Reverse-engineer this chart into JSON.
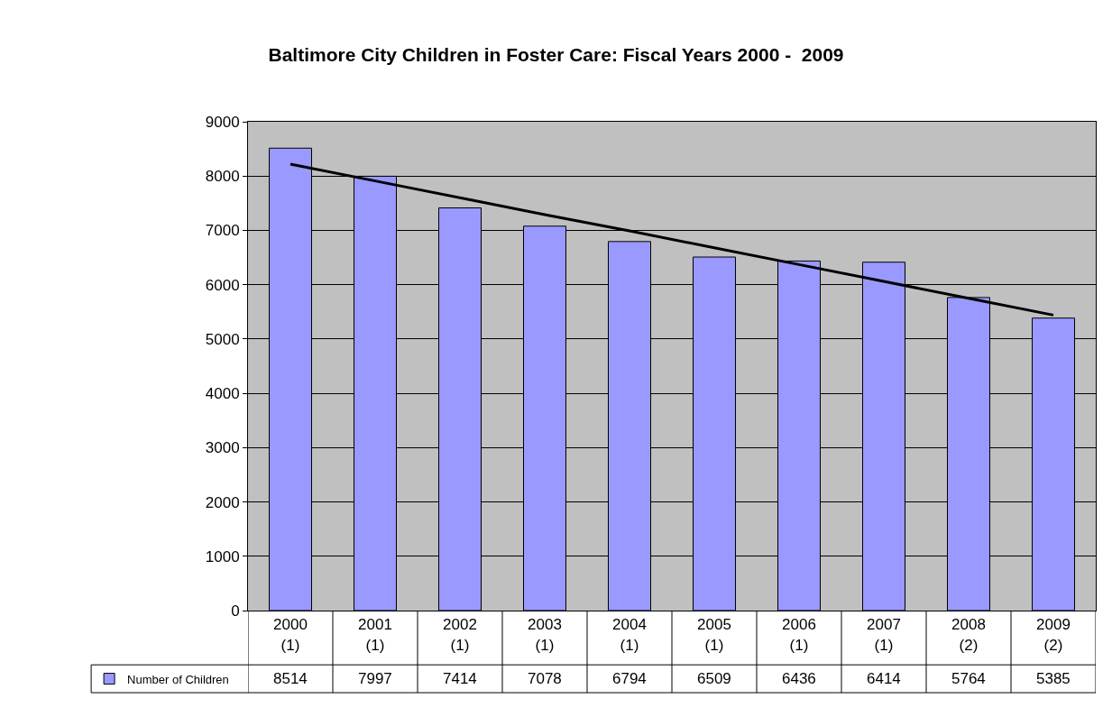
{
  "chart_data": {
    "type": "bar",
    "title": "Baltimore City Children in Foster Care: Fiscal Years 2000 -  2009",
    "categories": [
      "2000\n(1)",
      "2001\n(1)",
      "2002\n(1)",
      "2003\n(1)",
      "2004\n(1)",
      "2005\n(1)",
      "2006\n(1)",
      "2007\n(1)",
      "2008\n(2)",
      "2009\n(2)"
    ],
    "series": [
      {
        "name": "Number of Children",
        "color": "#9999ff",
        "values": [
          8514,
          7997,
          7414,
          7078,
          6794,
          6509,
          6436,
          6414,
          5764,
          5385
        ],
        "value_labels": [
          "8514",
          "7997",
          "7414",
          "7078",
          "6794",
          "6509",
          "6436",
          "6414",
          "5764",
          "5385"
        ]
      },
      {
        "type": "line",
        "color": "#000000",
        "values": [
          8220,
          7910,
          7600,
          7290,
          6990,
          6680,
          6370,
          6060,
          5750,
          5440
        ]
      }
    ],
    "ylim": [
      0,
      9000
    ],
    "yticks": [
      0,
      1000,
      2000,
      3000,
      4000,
      5000,
      6000,
      7000,
      8000,
      9000
    ],
    "grid": "y",
    "legend": "bottom left",
    "marker": "none",
    "line_style": "solid"
  }
}
